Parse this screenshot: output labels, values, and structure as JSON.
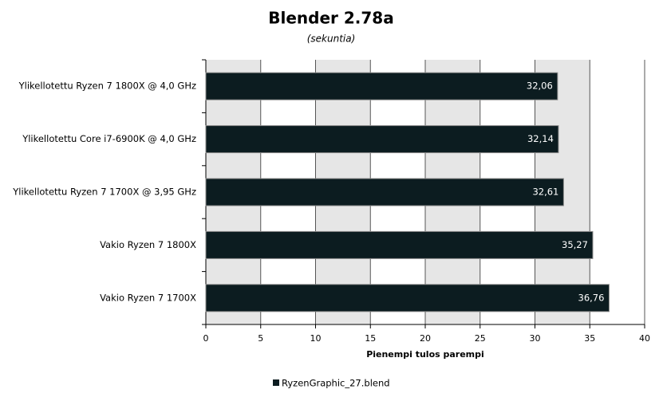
{
  "chart_data": {
    "type": "bar",
    "orientation": "horizontal",
    "title": "Blender 2.78a",
    "subtitle": "(sekuntia)",
    "x_label": "Pienempi tulos parempi",
    "categories": [
      "Ylikellotettu Ryzen 7 1800X @ 4,0 GHz",
      "Ylikellotettu Core i7-6900K @ 4,0 GHz",
      "Ylikellotettu Ryzen 7 1700X @ 3,95 GHz",
      "Vakio Ryzen 7 1800X",
      "Vakio Ryzen 7 1700X"
    ],
    "series": [
      {
        "name": "RyzenGraphic_27.blend",
        "color": "#0c1c20",
        "values": [
          32.06,
          32.14,
          32.61,
          35.27,
          36.76
        ],
        "value_labels": [
          "32,06",
          "32,14",
          "32,61",
          "35,27",
          "36,76"
        ]
      }
    ],
    "xlim": [
      0,
      40
    ],
    "xticks": [
      0,
      5,
      10,
      15,
      20,
      25,
      30,
      35,
      40
    ],
    "grid": true,
    "legend": "bottom"
  }
}
